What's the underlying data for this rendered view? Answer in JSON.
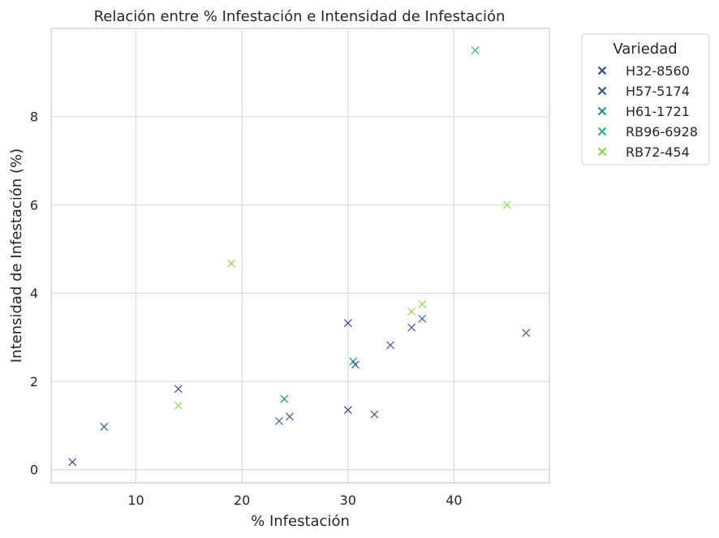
{
  "chart_data": {
    "type": "scatter",
    "title": "Relación entre % Infestación e Intensidad de Infestación",
    "xlabel": "% Infestación",
    "ylabel": "Intensidad de Infestación (%)",
    "xlim": [
      2,
      49
    ],
    "ylim": [
      -0.3,
      10
    ],
    "xticks": [
      "10",
      "20",
      "30",
      "40"
    ],
    "yticks": [
      "0",
      "2",
      "4",
      "6",
      "8"
    ],
    "grid": true,
    "marker": "x",
    "legend": {
      "title": "Variedad",
      "placement": "outside-top-right"
    },
    "series": [
      {
        "name": "H32-8560",
        "color": "#3b4a8c",
        "points": [
          [
            4,
            0.17
          ],
          [
            14,
            1.83
          ],
          [
            30,
            3.32
          ],
          [
            30,
            1.35
          ],
          [
            30.7,
            2.38
          ],
          [
            34,
            2.82
          ],
          [
            36,
            3.22
          ]
        ]
      },
      {
        "name": "H57-5174",
        "color": "#3b5f8a",
        "points": [
          [
            7,
            0.97
          ],
          [
            23.5,
            1.1
          ],
          [
            24.5,
            1.2
          ],
          [
            32.5,
            1.25
          ],
          [
            37,
            3.42
          ],
          [
            46.8,
            3.1
          ]
        ]
      },
      {
        "name": "H61-1721",
        "color": "#218f8d",
        "points": [
          [
            24,
            1.6
          ],
          [
            30.5,
            2.45
          ]
        ]
      },
      {
        "name": "RB96-6928",
        "color": "#2fb47c",
        "points": [
          [
            42,
            9.5
          ]
        ]
      },
      {
        "name": "RB72-454",
        "color": "#8fd744",
        "points": [
          [
            14,
            1.45
          ],
          [
            19,
            4.67
          ],
          [
            36,
            3.58
          ],
          [
            37,
            3.75
          ],
          [
            45,
            6.0
          ]
        ]
      }
    ]
  }
}
